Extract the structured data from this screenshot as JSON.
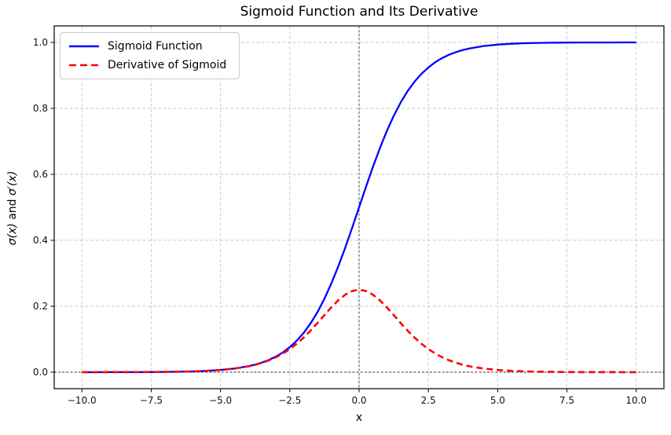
{
  "figure": {
    "background": "#ffffff"
  },
  "chart_data": {
    "type": "line",
    "title": "Sigmoid Function and Its Derivative",
    "xlabel": "x",
    "ylabel": "σ(x) and σ′(x)",
    "ylabel_parts": {
      "math1": "σ(x)",
      "text": " and ",
      "math2": "σ′(x)"
    },
    "xlim": [
      -11,
      11
    ],
    "ylim": [
      -0.05,
      1.05
    ],
    "grid": true,
    "legend_position": "upper left",
    "xticks": {
      "labels": [
        "−10.0",
        "−7.5",
        "−5.0",
        "−2.5",
        "0.0",
        "2.5",
        "5.0",
        "7.5",
        "10.0"
      ],
      "values": [
        -10,
        -7.5,
        -5,
        -2.5,
        0,
        2.5,
        5,
        7.5,
        10
      ]
    },
    "yticks": {
      "labels": [
        "0.0",
        "0.2",
        "0.4",
        "0.6",
        "0.8",
        "1.0"
      ],
      "values": [
        0,
        0.2,
        0.4,
        0.6,
        0.8,
        1.0
      ]
    },
    "reference_lines": {
      "vline_x": 0,
      "hline_y": 0,
      "color": "#2e2e2e"
    },
    "colors": {
      "grid": "#c9c9c9",
      "axis": "#000000",
      "sigmoid": "#0000ff",
      "derivative": "#ff0000"
    },
    "x": [
      -10,
      -9.5,
      -9,
      -8.5,
      -8,
      -7.5,
      -7,
      -6.5,
      -6,
      -5.5,
      -5,
      -4.5,
      -4,
      -3.75,
      -3.5,
      -3.25,
      -3,
      -2.75,
      -2.5,
      -2.25,
      -2,
      -1.75,
      -1.5,
      -1.25,
      -1,
      -0.75,
      -0.5,
      -0.25,
      0,
      0.25,
      0.5,
      0.75,
      1,
      1.25,
      1.5,
      1.75,
      2,
      2.25,
      2.5,
      2.75,
      3,
      3.25,
      3.5,
      3.75,
      4,
      4.5,
      5,
      5.5,
      6,
      6.5,
      7,
      7.5,
      8,
      8.5,
      9,
      9.5,
      10
    ],
    "series": [
      {
        "id": "sigmoid",
        "name": "Sigmoid Function",
        "color": "#0000ff",
        "style": "solid",
        "y": [
          5e-05,
          7e-05,
          0.00012,
          0.0002,
          0.00034,
          0.00055,
          0.00091,
          0.0015,
          0.00247,
          0.00407,
          0.00669,
          0.01099,
          0.01799,
          0.02297,
          0.02931,
          0.03732,
          0.04743,
          0.06008,
          0.07586,
          0.09534,
          0.1192,
          0.14805,
          0.18243,
          0.2227,
          0.26894,
          0.32082,
          0.37754,
          0.43782,
          0.5,
          0.56218,
          0.62246,
          0.67918,
          0.73106,
          0.7773,
          0.81757,
          0.85195,
          0.8808,
          0.90466,
          0.92414,
          0.93992,
          0.95257,
          0.96268,
          0.97069,
          0.97703,
          0.98201,
          0.98901,
          0.99331,
          0.99593,
          0.99753,
          0.9985,
          0.99909,
          0.99945,
          0.99966,
          0.9998,
          0.99988,
          0.99993,
          0.99995
        ]
      },
      {
        "id": "derivative",
        "name": "Derivative of Sigmoid",
        "color": "#ff0000",
        "style": "dashed",
        "y": [
          5e-05,
          7e-05,
          0.00012,
          0.0002,
          0.00033,
          0.00055,
          0.00091,
          0.0015,
          0.00247,
          0.00405,
          0.00665,
          0.01087,
          0.01766,
          0.02245,
          0.02845,
          0.03593,
          0.04518,
          0.05647,
          0.0701,
          0.08625,
          0.10499,
          0.12613,
          0.14915,
          0.17311,
          0.19661,
          0.21789,
          0.235,
          0.24613,
          0.25,
          0.24613,
          0.235,
          0.21789,
          0.19661,
          0.17311,
          0.14915,
          0.12613,
          0.10499,
          0.08625,
          0.0701,
          0.05647,
          0.04518,
          0.03593,
          0.02845,
          0.02245,
          0.01766,
          0.01087,
          0.00665,
          0.00405,
          0.00247,
          0.0015,
          0.00091,
          0.00055,
          0.00033,
          0.0002,
          0.00012,
          7e-05,
          5e-05
        ]
      }
    ]
  }
}
